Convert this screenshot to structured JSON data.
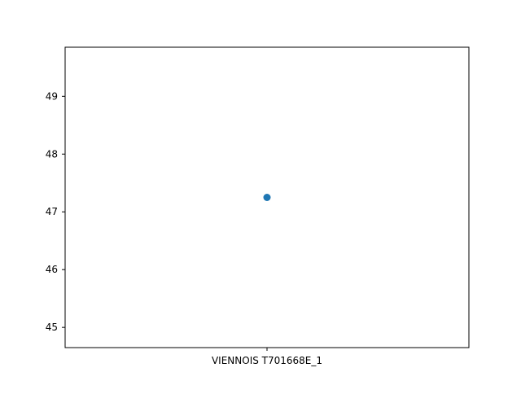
{
  "chart_data": {
    "type": "scatter",
    "categories": [
      "VIENNOIS T701668E_1"
    ],
    "values": [
      47.25
    ],
    "xlabel": "",
    "ylabel": "",
    "ylim": [
      44.65,
      49.85
    ],
    "yticks": [
      45,
      46,
      47,
      48,
      49
    ],
    "grid": false,
    "legend": "none",
    "marker_color": "#1f77b4"
  }
}
